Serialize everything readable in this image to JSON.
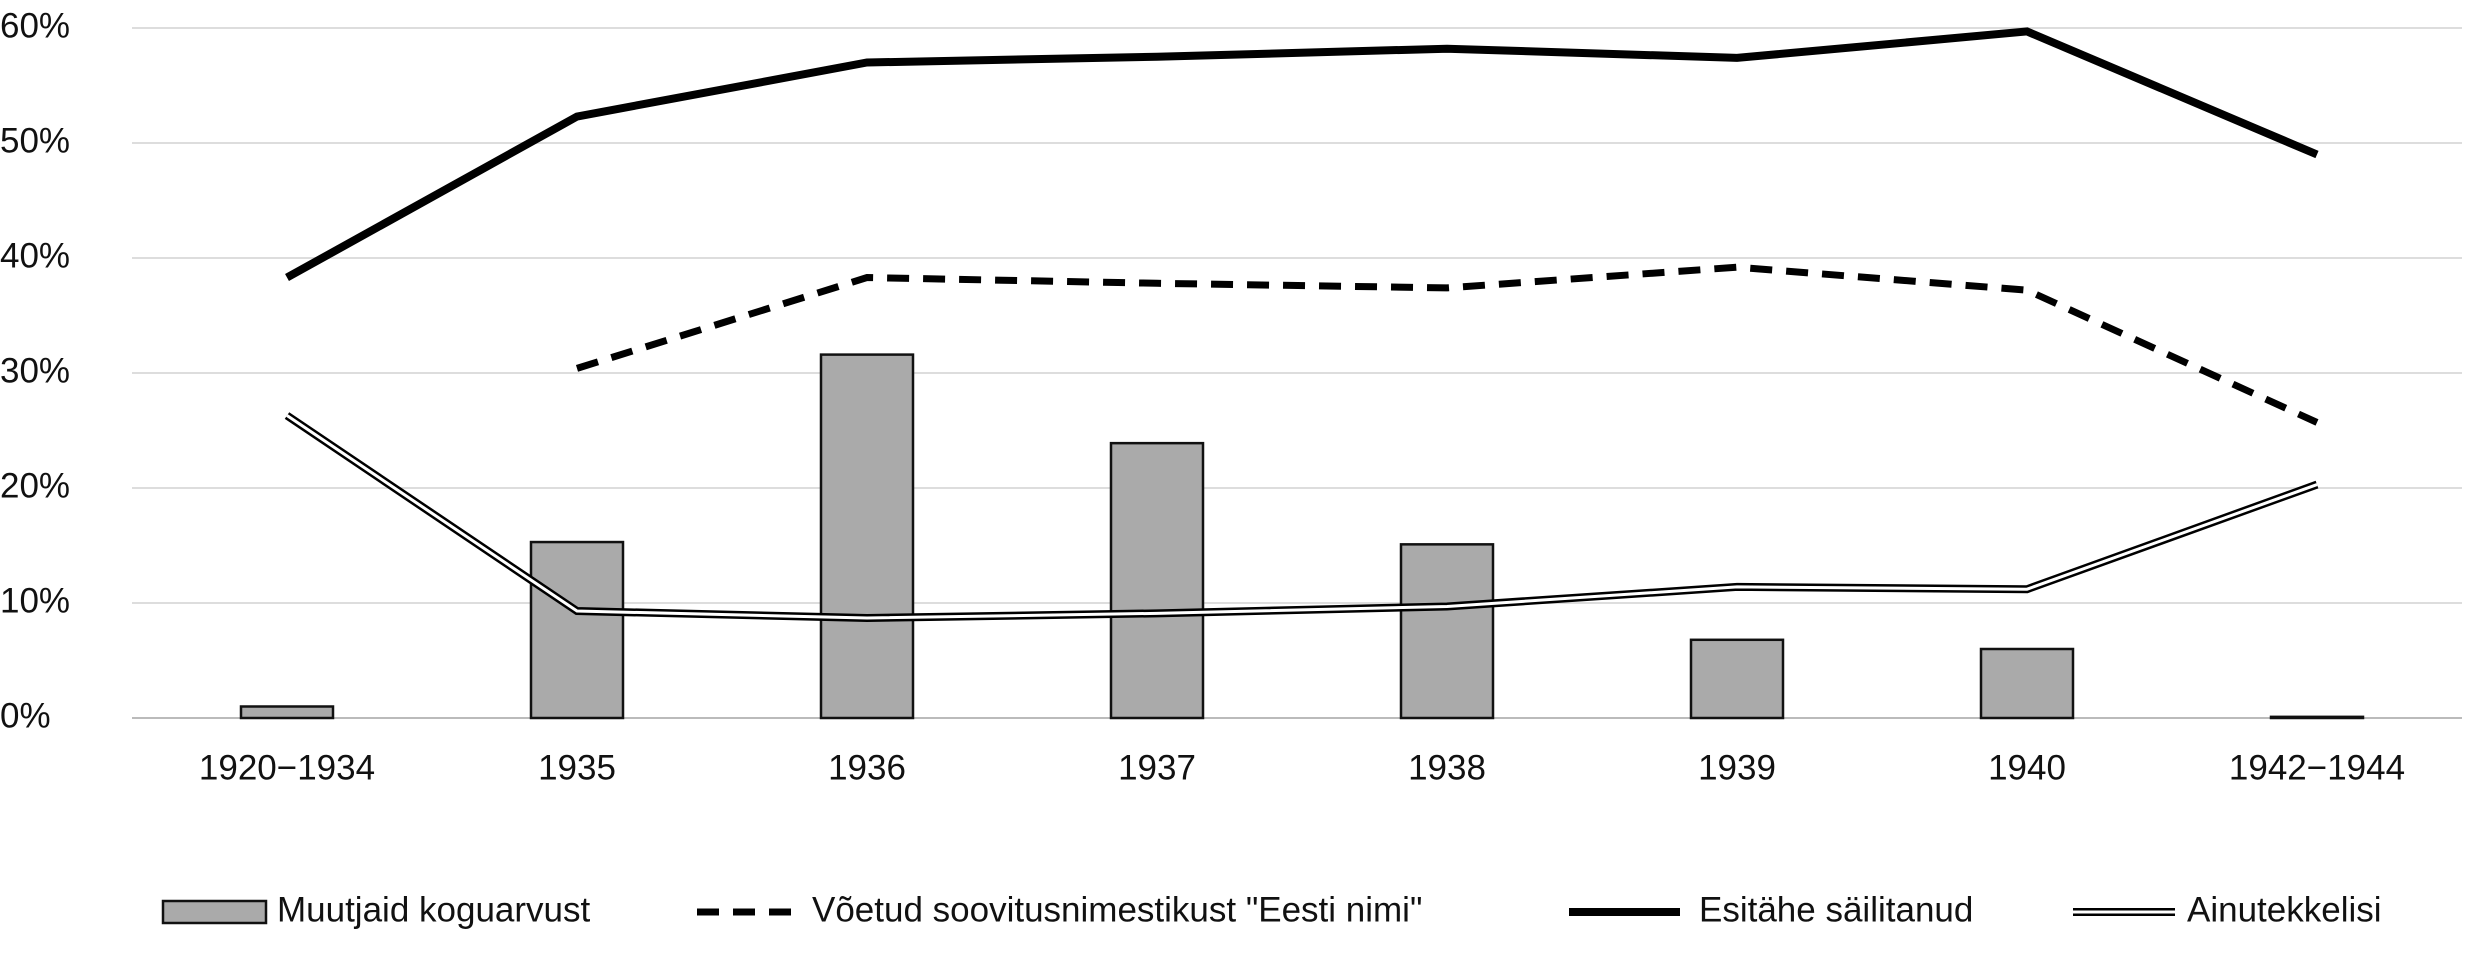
{
  "chart_data": {
    "type": "combo",
    "categories": [
      "1920−1934",
      "1935",
      "1936",
      "1937",
      "1938",
      "1939",
      "1940",
      "1942−1944"
    ],
    "series": [
      {
        "name": "Muutjaid koguarvust",
        "type": "bar",
        "color": "#aaaaaa",
        "values": [
          1.0,
          15.3,
          31.6,
          23.9,
          15.1,
          6.8,
          6.0,
          0.1
        ]
      },
      {
        "name": "Võetud soovitusnimestikust \"Eesti nimi\"",
        "type": "line",
        "style": "dashed",
        "color": "#000000",
        "values": [
          null,
          30.4,
          38.3,
          37.8,
          37.4,
          39.2,
          37.2,
          25.7
        ]
      },
      {
        "name": "Esitähe säilitanud",
        "type": "line",
        "style": "solid",
        "color": "#000000",
        "values": [
          38.3,
          52.3,
          57.0,
          57.5,
          58.2,
          57.4,
          59.7,
          49.0
        ]
      },
      {
        "name": "Ainutekkelisi",
        "type": "line",
        "style": "double",
        "color": "#000000",
        "values": [
          26.3,
          9.3,
          8.7,
          9.1,
          9.7,
          11.4,
          11.2,
          20.3
        ]
      }
    ],
    "ylim": [
      0,
      60
    ],
    "yticks": [
      {
        "value": 0,
        "label": "0%"
      },
      {
        "value": 10,
        "label": "10%"
      },
      {
        "value": 20,
        "label": "20%"
      },
      {
        "value": 30,
        "label": "30%"
      },
      {
        "value": 40,
        "label": "40%"
      },
      {
        "value": 50,
        "label": "50%"
      },
      {
        "value": 60,
        "label": "60%"
      }
    ],
    "grid": true,
    "legend": "bottom"
  }
}
